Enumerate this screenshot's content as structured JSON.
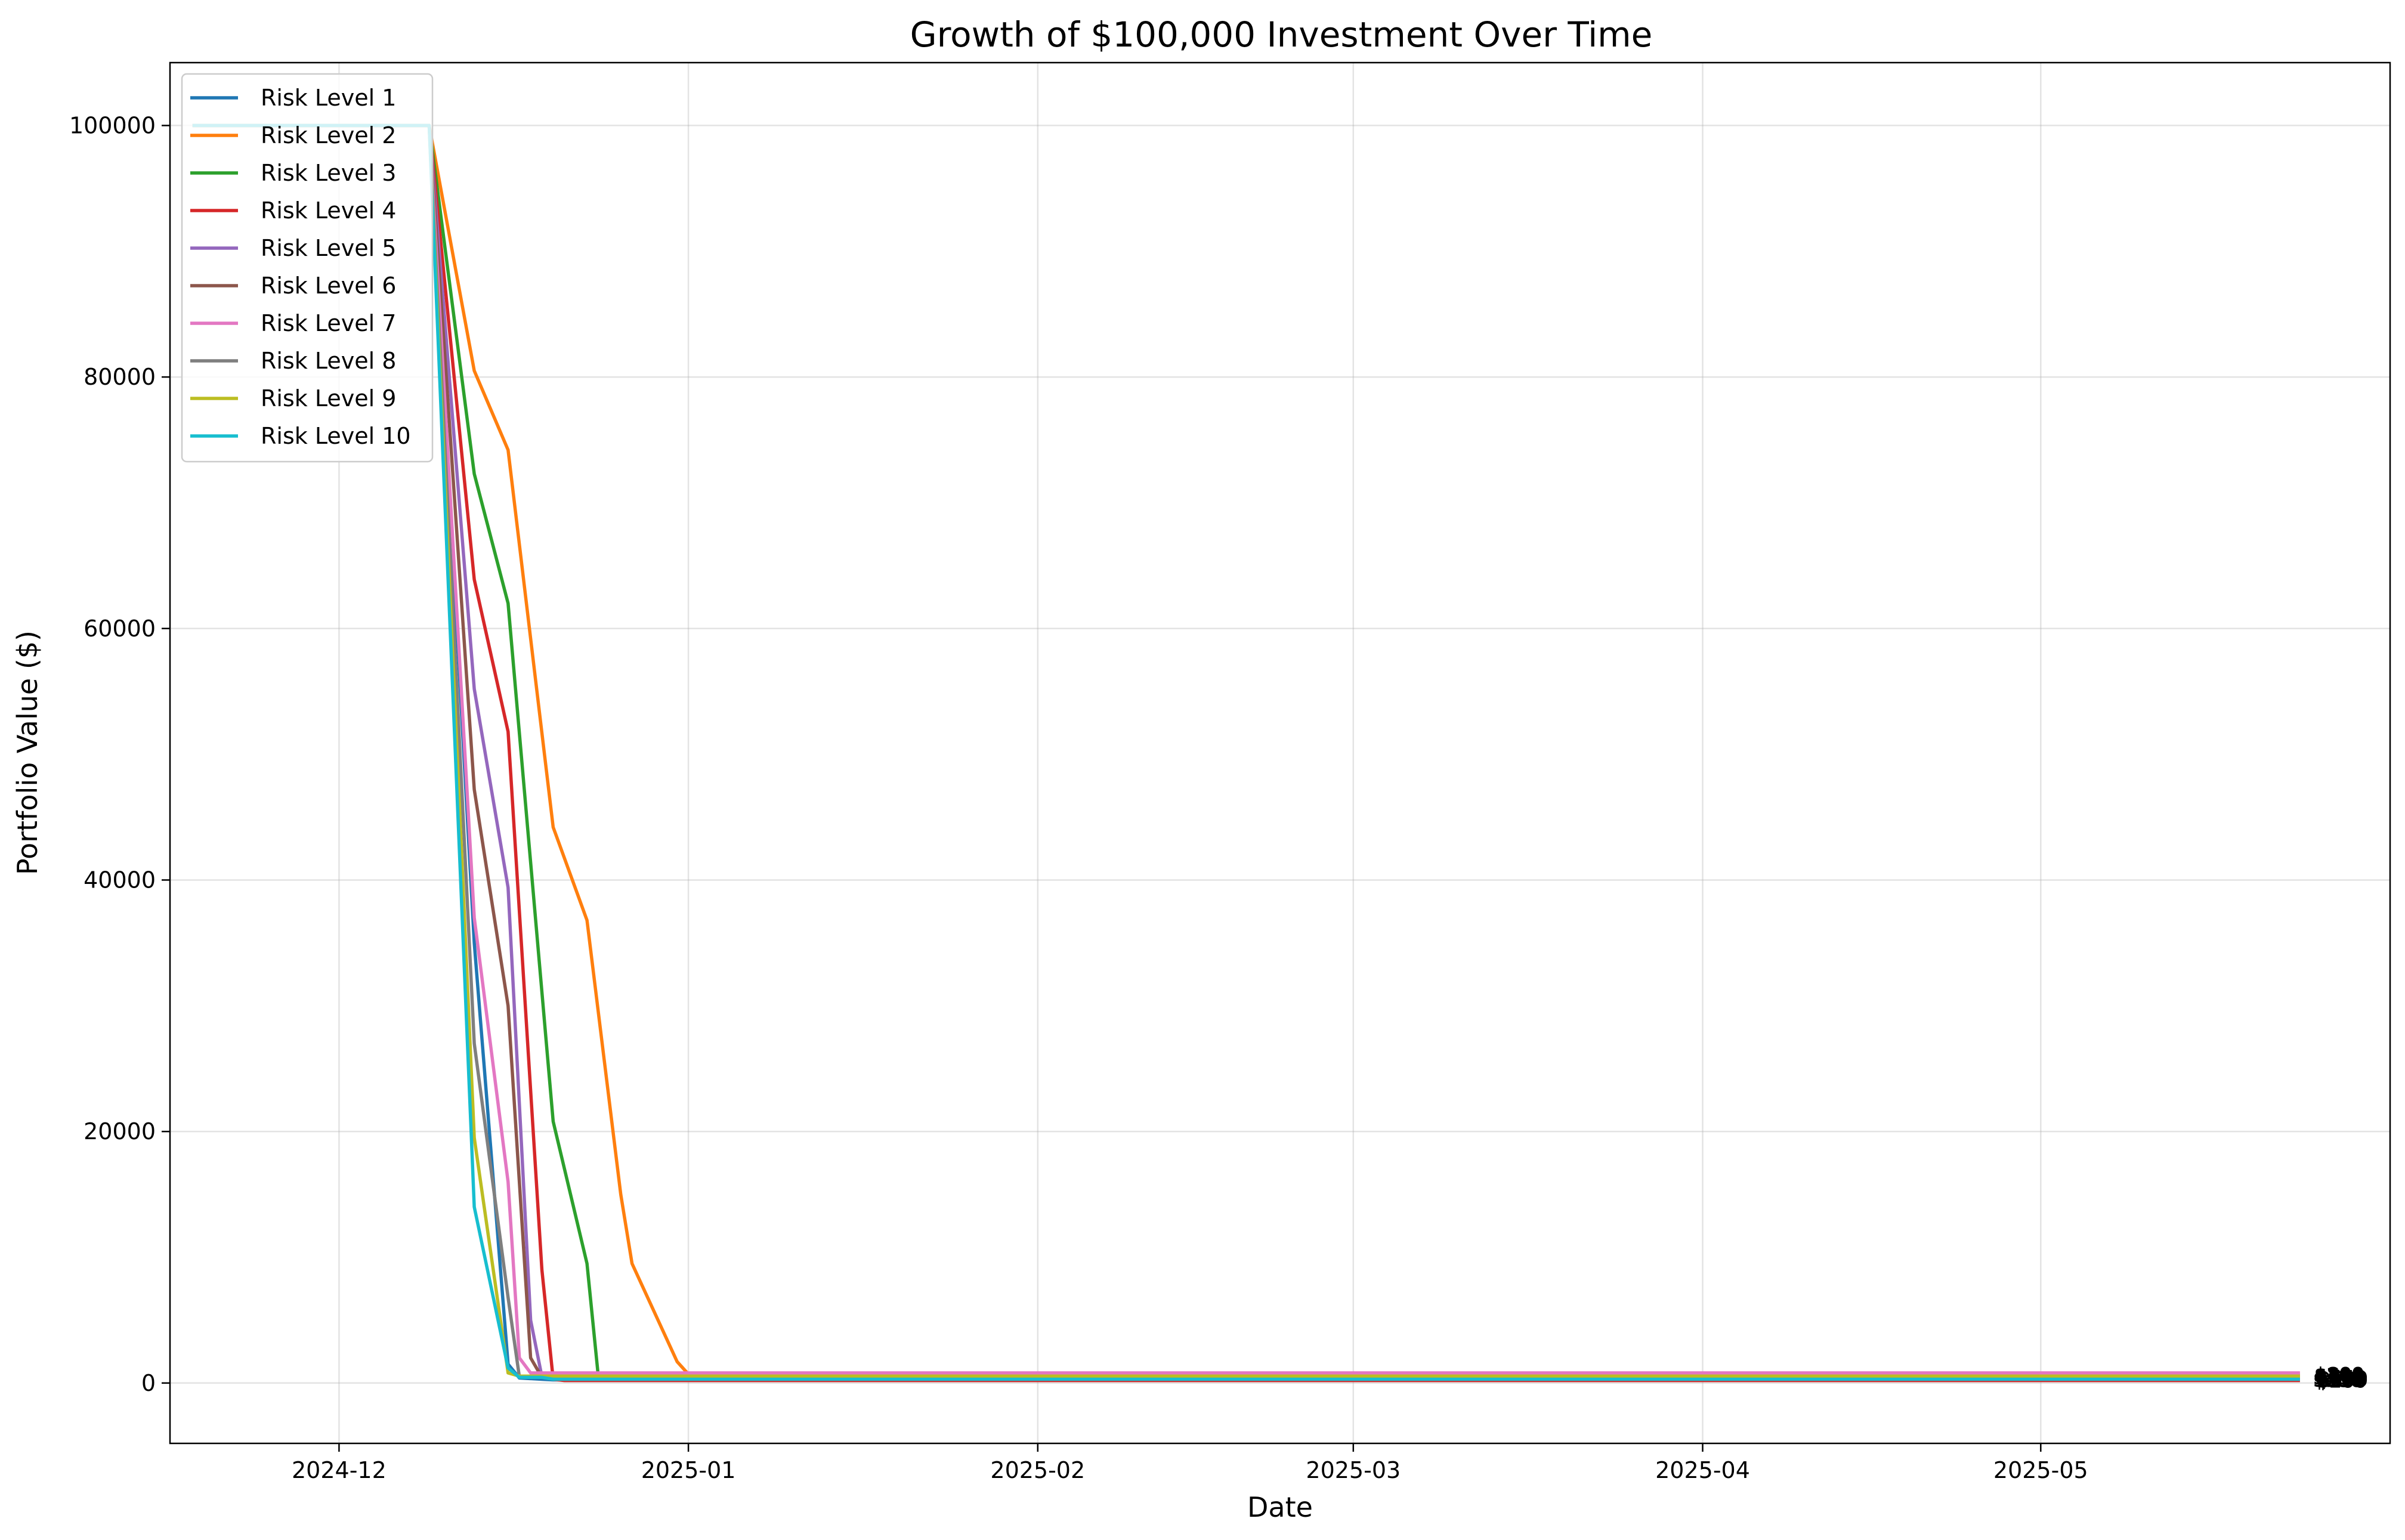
{
  "chart_data": {
    "type": "line",
    "title": "Growth of $100,000 Investment Over Time",
    "xlabel": "Date",
    "ylabel": "Portfolio Value ($)",
    "x_axis": "date",
    "xlim": [
      "2024-11-16",
      "2025-06-01"
    ],
    "ylim": [
      -4800,
      105000
    ],
    "xticks": [
      {
        "label": "2024-12",
        "value": "2024-12-01"
      },
      {
        "label": "2025-01",
        "value": "2025-01-01"
      },
      {
        "label": "2025-02",
        "value": "2025-02-01"
      },
      {
        "label": "2025-03",
        "value": "2025-03-01"
      },
      {
        "label": "2025-04",
        "value": "2025-04-01"
      },
      {
        "label": "2025-05",
        "value": "2025-05-01"
      }
    ],
    "yticks": [
      {
        "label": "0",
        "value": 0
      },
      {
        "label": "20000",
        "value": 20000
      },
      {
        "label": "40000",
        "value": 40000
      },
      {
        "label": "60000",
        "value": 60000
      },
      {
        "label": "80000",
        "value": 80000
      },
      {
        "label": "100000",
        "value": 100000
      }
    ],
    "grid": true,
    "legend_position": "top-left",
    "series": [
      {
        "name": "Risk Level 1",
        "color": "#1f77b4",
        "points": [
          [
            "2024-11-18",
            100000
          ],
          [
            "2024-12-09",
            100000
          ],
          [
            "2024-12-13",
            35000
          ],
          [
            "2024-12-16",
            1500
          ],
          [
            "2024-12-17",
            400
          ],
          [
            "2024-12-19",
            300
          ],
          [
            "2024-12-20",
            250
          ],
          [
            "2024-12-24",
            250
          ],
          [
            "2025-05-24",
            250
          ]
        ]
      },
      {
        "name": "Risk Level 2",
        "color": "#ff7f0e",
        "points": [
          [
            "2024-11-18",
            100000
          ],
          [
            "2024-12-09",
            100000
          ],
          [
            "2024-12-13",
            80500
          ],
          [
            "2024-12-16",
            74200
          ],
          [
            "2024-12-20",
            44200
          ],
          [
            "2024-12-23",
            36800
          ],
          [
            "2024-12-26",
            15000
          ],
          [
            "2024-12-27",
            9500
          ],
          [
            "2024-12-31",
            1700
          ],
          [
            "2025-01-01",
            700
          ],
          [
            "2025-05-24",
            700
          ]
        ]
      },
      {
        "name": "Risk Level 3",
        "color": "#2ca02c",
        "points": [
          [
            "2024-11-18",
            100000
          ],
          [
            "2024-12-09",
            100000
          ],
          [
            "2024-12-13",
            72300
          ],
          [
            "2024-12-16",
            62000
          ],
          [
            "2024-12-20",
            20800
          ],
          [
            "2024-12-23",
            9500
          ],
          [
            "2024-12-24",
            600
          ],
          [
            "2025-05-24",
            600
          ]
        ]
      },
      {
        "name": "Risk Level 4",
        "color": "#d62728",
        "points": [
          [
            "2024-11-18",
            100000
          ],
          [
            "2024-12-09",
            100000
          ],
          [
            "2024-12-13",
            63900
          ],
          [
            "2024-12-16",
            51800
          ],
          [
            "2024-12-19",
            9000
          ],
          [
            "2024-12-20",
            300
          ],
          [
            "2024-12-21",
            200
          ],
          [
            "2025-05-24",
            200
          ]
        ]
      },
      {
        "name": "Risk Level 5",
        "color": "#9467bd",
        "points": [
          [
            "2024-11-18",
            100000
          ],
          [
            "2024-12-09",
            100000
          ],
          [
            "2024-12-13",
            55200
          ],
          [
            "2024-12-16",
            39400
          ],
          [
            "2024-12-18",
            5000
          ],
          [
            "2024-12-19",
            500
          ],
          [
            "2025-05-24",
            500
          ]
        ]
      },
      {
        "name": "Risk Level 6",
        "color": "#8c564b",
        "points": [
          [
            "2024-11-18",
            100000
          ],
          [
            "2024-12-09",
            100000
          ],
          [
            "2024-12-13",
            47200
          ],
          [
            "2024-12-16",
            30000
          ],
          [
            "2024-12-18",
            2000
          ],
          [
            "2024-12-19",
            450
          ],
          [
            "2025-05-24",
            450
          ]
        ]
      },
      {
        "name": "Risk Level 7",
        "color": "#e377c2",
        "points": [
          [
            "2024-11-18",
            100000
          ],
          [
            "2024-12-09",
            100000
          ],
          [
            "2024-12-13",
            37000
          ],
          [
            "2024-12-16",
            16000
          ],
          [
            "2024-12-17",
            2000
          ],
          [
            "2024-12-18",
            800
          ],
          [
            "2025-05-24",
            800
          ]
        ]
      },
      {
        "name": "Risk Level 8",
        "color": "#7f7f7f",
        "points": [
          [
            "2024-11-18",
            100000
          ],
          [
            "2024-12-09",
            100000
          ],
          [
            "2024-12-13",
            27000
          ],
          [
            "2024-12-16",
            6800
          ],
          [
            "2024-12-17",
            500
          ],
          [
            "2025-05-24",
            500
          ]
        ]
      },
      {
        "name": "Risk Level 9",
        "color": "#bcbd22",
        "points": [
          [
            "2024-11-18",
            100000
          ],
          [
            "2024-12-09",
            100000
          ],
          [
            "2024-12-13",
            19500
          ],
          [
            "2024-12-16",
            800
          ],
          [
            "2024-12-17",
            550
          ],
          [
            "2025-05-24",
            550
          ]
        ]
      },
      {
        "name": "Risk Level 10",
        "color": "#17becf",
        "points": [
          [
            "2024-11-18",
            100000
          ],
          [
            "2024-12-09",
            100000
          ],
          [
            "2024-12-13",
            14000
          ],
          [
            "2024-12-16",
            1200
          ],
          [
            "2024-12-17",
            450
          ],
          [
            "2024-12-19",
            450
          ],
          [
            "2024-12-20",
            300
          ],
          [
            "2025-05-24",
            300
          ]
        ]
      }
    ],
    "end_labels": [
      {
        "text": "$250",
        "y": 250
      },
      {
        "text": "$700",
        "y": 700
      },
      {
        "text": "$600",
        "y": 600
      },
      {
        "text": "$200",
        "y": 200
      },
      {
        "text": "$500",
        "y": 500
      },
      {
        "text": "$450",
        "y": 450
      },
      {
        "text": "$800",
        "y": 800
      },
      {
        "text": "$500",
        "y": 500
      },
      {
        "text": "$550",
        "y": 550
      },
      {
        "text": "$300",
        "y": 300
      }
    ]
  }
}
